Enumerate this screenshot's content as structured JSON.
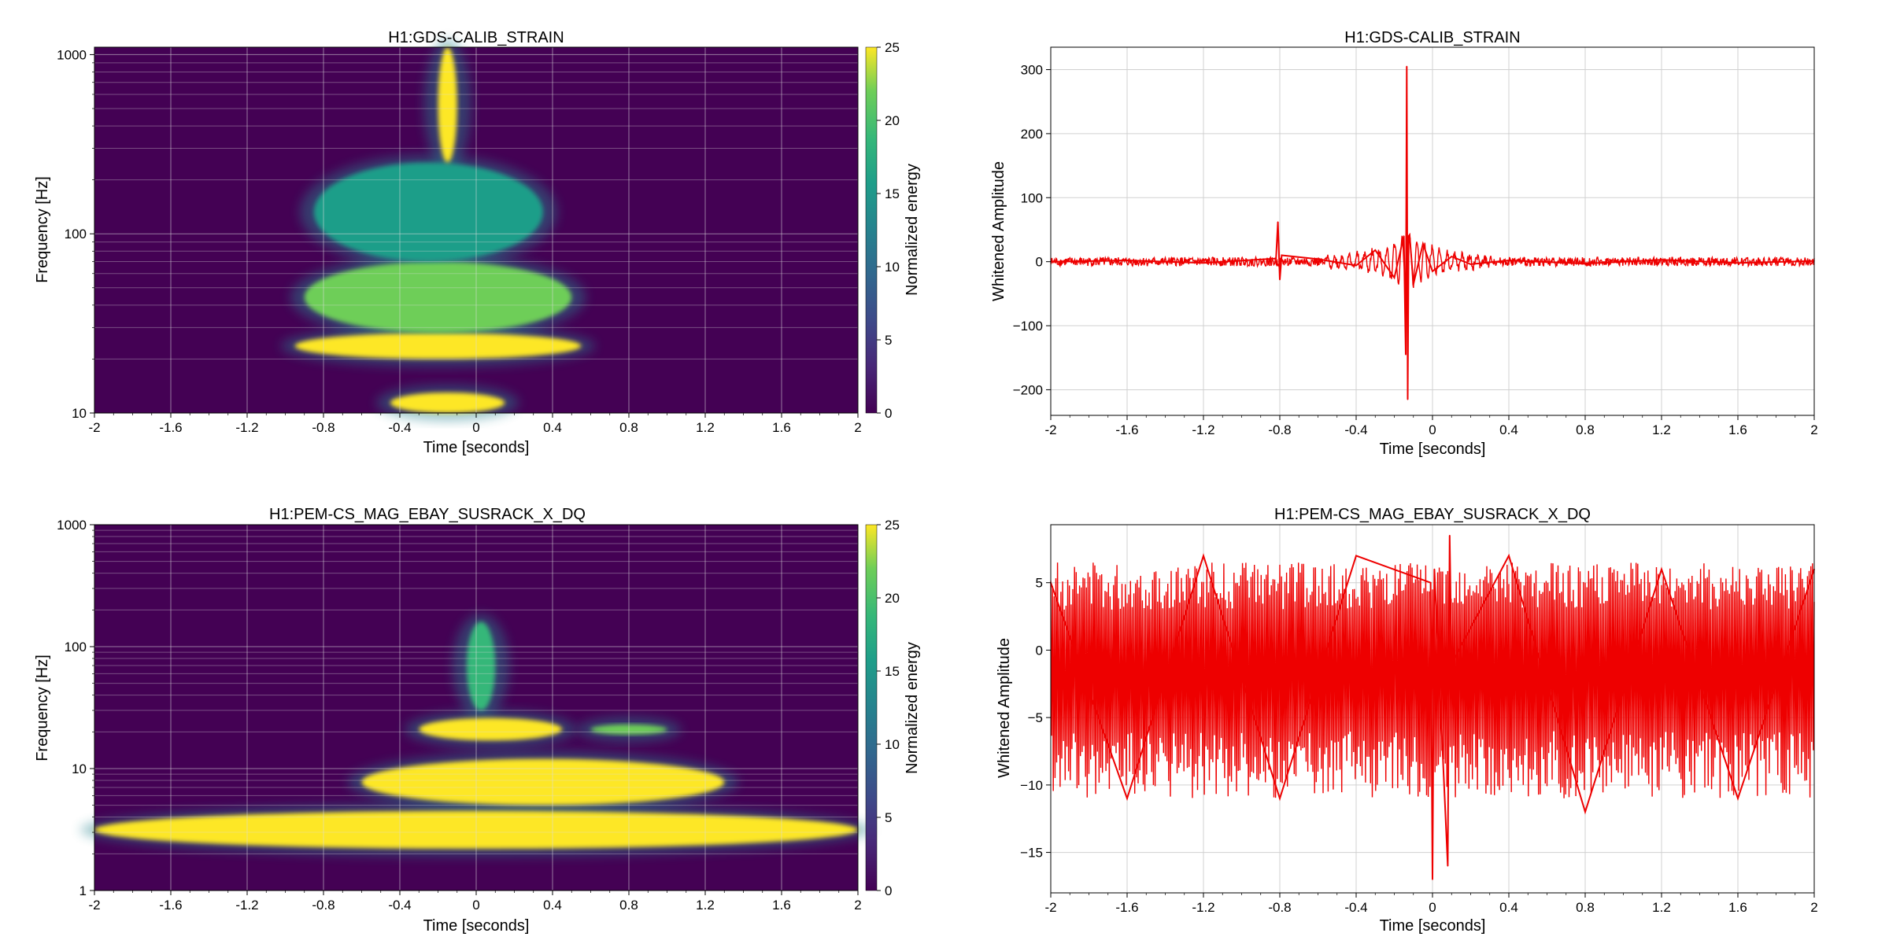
{
  "chart_data": [
    {
      "type": "heatmap",
      "title": "H1:GDS-CALIB_STRAIN",
      "xlabel": "Time [seconds]",
      "ylabel": "Frequency [Hz]",
      "xlim": [
        -2,
        2
      ],
      "ylim": [
        10,
        1100
      ],
      "yscale": "log",
      "xticks": [
        -2,
        -1.6,
        -1.2,
        -0.8,
        -0.4,
        0,
        0.4,
        0.8,
        1.2,
        1.6,
        2
      ],
      "xtick_labels": [
        "-2",
        "-1.6",
        "-1.2",
        "-0.8",
        "-0.4",
        "0",
        "0.4",
        "0.8",
        "1.2",
        "1.6",
        "2"
      ],
      "yticks": [
        10,
        100,
        1000
      ],
      "ytick_labels": [
        "10",
        "100",
        "1000"
      ],
      "grid": true,
      "colormap": "viridis",
      "colorbar": {
        "label": "Normalized energy",
        "range": [
          0,
          25
        ],
        "ticks": [
          0,
          5,
          10,
          15,
          20,
          25
        ],
        "tick_labels": [
          "0",
          "5",
          "10",
          "15",
          "20",
          "25"
        ]
      },
      "energy_regions": [
        {
          "t": [
            -0.45,
            0.15
          ],
          "f": [
            10,
            13
          ],
          "energy": 25
        },
        {
          "t": [
            -0.95,
            0.55
          ],
          "f": [
            20,
            28
          ],
          "energy": 25
        },
        {
          "t": [
            -0.9,
            0.5
          ],
          "f": [
            28,
            70
          ],
          "energy": 24
        },
        {
          "t": [
            -0.85,
            0.35
          ],
          "f": [
            70,
            250
          ],
          "energy": 18
        },
        {
          "t": [
            -0.2,
            -0.1
          ],
          "f": [
            250,
            1100
          ],
          "energy": 25
        }
      ]
    },
    {
      "type": "line",
      "title": "H1:GDS-CALIB_STRAIN",
      "xlabel": "Time [seconds]",
      "ylabel": "Whitened Amplitude",
      "xlim": [
        -2,
        2
      ],
      "ylim": [
        -240,
        335
      ],
      "xticks": [
        -2,
        -1.6,
        -1.2,
        -0.8,
        -0.4,
        0,
        0.4,
        0.8,
        1.2,
        1.6,
        2
      ],
      "xtick_labels": [
        "-2",
        "-1.6",
        "-1.2",
        "-0.8",
        "-0.4",
        "0",
        "0.4",
        "0.8",
        "1.2",
        "1.6",
        "2"
      ],
      "yticks": [
        -200,
        -100,
        0,
        100,
        200,
        300
      ],
      "ytick_labels": [
        "−200",
        "−100",
        "0",
        "100",
        "200",
        "300"
      ],
      "grid": true,
      "color": "#ee0000",
      "series": [
        {
          "x": [
            -2,
            -1.6,
            -1.2,
            -0.82,
            -0.81,
            -0.8,
            -0.79,
            -0.6,
            -0.4,
            -0.3,
            -0.2,
            -0.15,
            -0.14,
            -0.135,
            -0.13,
            -0.125,
            -0.12,
            -0.1,
            -0.05,
            0,
            0.1,
            0.2,
            0.4,
            0.8,
            1.2,
            1.6,
            2
          ],
          "y": [
            0,
            2,
            -2,
            5,
            62,
            -28,
            10,
            4,
            -6,
            18,
            -25,
            40,
            -145,
            305,
            -215,
            40,
            42,
            -35,
            28,
            -15,
            8,
            -4,
            2,
            -3,
            3,
            -2,
            1
          ]
        }
      ]
    },
    {
      "type": "heatmap",
      "title": "H1:PEM-CS_MAG_EBAY_SUSRACK_X_DQ",
      "xlabel": "Time [seconds]",
      "ylabel": "Frequency [Hz]",
      "xlim": [
        -2,
        2
      ],
      "ylim": [
        1,
        1000
      ],
      "yscale": "log",
      "xticks": [
        -2,
        -1.6,
        -1.2,
        -0.8,
        -0.4,
        0,
        0.4,
        0.8,
        1.2,
        1.6,
        2
      ],
      "xtick_labels": [
        "-2",
        "-1.6",
        "-1.2",
        "-0.8",
        "-0.4",
        "0",
        "0.4",
        "0.8",
        "1.2",
        "1.6",
        "2"
      ],
      "yticks": [
        1,
        10,
        100,
        1000
      ],
      "ytick_labels": [
        "1",
        "10",
        "100",
        "1000"
      ],
      "grid": true,
      "colormap": "viridis",
      "colorbar": {
        "label": "Normalized energy",
        "range": [
          0,
          25
        ],
        "ticks": [
          0,
          5,
          10,
          15,
          20,
          25
        ],
        "tick_labels": [
          "0",
          "5",
          "10",
          "15",
          "20",
          "25"
        ]
      },
      "energy_regions": [
        {
          "t": [
            -2,
            2
          ],
          "f": [
            2.2,
            4.5
          ],
          "energy": 25
        },
        {
          "t": [
            -0.6,
            1.3
          ],
          "f": [
            5,
            12
          ],
          "energy": 25
        },
        {
          "t": [
            -0.3,
            0.45
          ],
          "f": [
            17,
            26
          ],
          "energy": 25
        },
        {
          "t": [
            0.6,
            1.0
          ],
          "f": [
            19,
            23
          ],
          "energy": 22
        },
        {
          "t": [
            -0.05,
            0.1
          ],
          "f": [
            30,
            160
          ],
          "energy": 20
        }
      ]
    },
    {
      "type": "line",
      "title": "H1:PEM-CS_MAG_EBAY_SUSRACK_X_DQ",
      "xlabel": "Time [seconds]",
      "ylabel": "Whitened Amplitude",
      "xlim": [
        -2,
        2
      ],
      "ylim": [
        -18,
        9.3
      ],
      "xticks": [
        -2,
        -1.6,
        -1.2,
        -0.8,
        -0.4,
        0,
        0.4,
        0.8,
        1.2,
        1.6,
        2
      ],
      "xtick_labels": [
        "-2",
        "-1.6",
        "-1.2",
        "-0.8",
        "-0.4",
        "0",
        "0.4",
        "0.8",
        "1.2",
        "1.6",
        "2"
      ],
      "yticks": [
        -15,
        -10,
        -5,
        0,
        5
      ],
      "ytick_labels": [
        "−15",
        "−10",
        "−5",
        "0",
        "5"
      ],
      "grid": true,
      "color": "#ee0000",
      "series": [
        {
          "x": [
            -2,
            -1.6,
            -1.2,
            -0.8,
            -0.4,
            -0.01,
            0,
            0.01,
            0.08,
            0.09,
            0.1,
            0.4,
            0.8,
            1.2,
            1.6,
            2
          ],
          "y": [
            5,
            -11,
            7,
            -11,
            7,
            5,
            -17,
            6,
            -16,
            8.5,
            -1,
            7,
            -12,
            6,
            -11,
            6
          ]
        }
      ]
    }
  ]
}
